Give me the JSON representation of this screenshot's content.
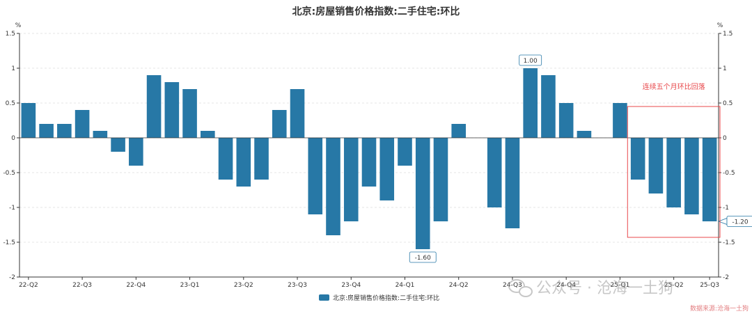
{
  "chart_data": {
    "type": "bar",
    "title": "北京:房屋销售价格指数:二手住宅:环比",
    "y_unit_left": "%",
    "y_unit_right": "%",
    "ylim": [
      -2,
      1.5
    ],
    "y_ticks": [
      1.5,
      1,
      0.5,
      0,
      -0.5,
      -1,
      -1.5,
      -2
    ],
    "y_tick_labels": [
      "1.5",
      "1",
      "0.5",
      "0",
      "-0.5",
      "-1",
      "-1.5",
      "-2"
    ],
    "grid": true,
    "legend_position": "bottom-center",
    "series": [
      {
        "name": "北京:房屋销售价格指数:二手住宅:环比",
        "color": "#2778a6",
        "values": [
          0.5,
          0.2,
          0.2,
          0.4,
          0.1,
          -0.2,
          -0.4,
          0.9,
          0.8,
          0.7,
          0.1,
          -0.6,
          -0.7,
          -0.6,
          0.4,
          0.7,
          -1.1,
          -1.4,
          -1.2,
          -0.7,
          -0.9,
          -0.4,
          -1.6,
          -1.2,
          0.2,
          0.0,
          -1.0,
          -1.3,
          1.0,
          0.9,
          0.5,
          0.1,
          0.0,
          0.5,
          -0.6,
          -0.8,
          -1.0,
          -1.1,
          -1.2
        ]
      }
    ],
    "x_tick_labels": [
      {
        "index": 0,
        "label": "22-Q2"
      },
      {
        "index": 3,
        "label": "22-Q3"
      },
      {
        "index": 6,
        "label": "22-Q4"
      },
      {
        "index": 9,
        "label": "23-Q1"
      },
      {
        "index": 12,
        "label": "23-Q2"
      },
      {
        "index": 15,
        "label": "23-Q3"
      },
      {
        "index": 18,
        "label": "23-Q4"
      },
      {
        "index": 21,
        "label": "24-Q1"
      },
      {
        "index": 24,
        "label": "24-Q2"
      },
      {
        "index": 27,
        "label": "24-Q3"
      },
      {
        "index": 30,
        "label": "24-Q4"
      },
      {
        "index": 33,
        "label": "25-Q1"
      },
      {
        "index": 36,
        "label": "25-Q2"
      },
      {
        "index": 38,
        "label": "25-Q3"
      }
    ],
    "data_labels": [
      {
        "index": 28,
        "text": "1.00",
        "position": "top"
      },
      {
        "index": 22,
        "text": "-1.60",
        "position": "bottom"
      },
      {
        "index": 38,
        "text": "-1.20",
        "position": "right"
      }
    ],
    "annotation": {
      "text": "连续五个月环比回落",
      "color": "#e8484b",
      "from_index": 34,
      "to_index": 38
    }
  },
  "watermark": {
    "text": "公众号 · 沧海一土狗",
    "source": "数据来源:沧海一土狗"
  }
}
